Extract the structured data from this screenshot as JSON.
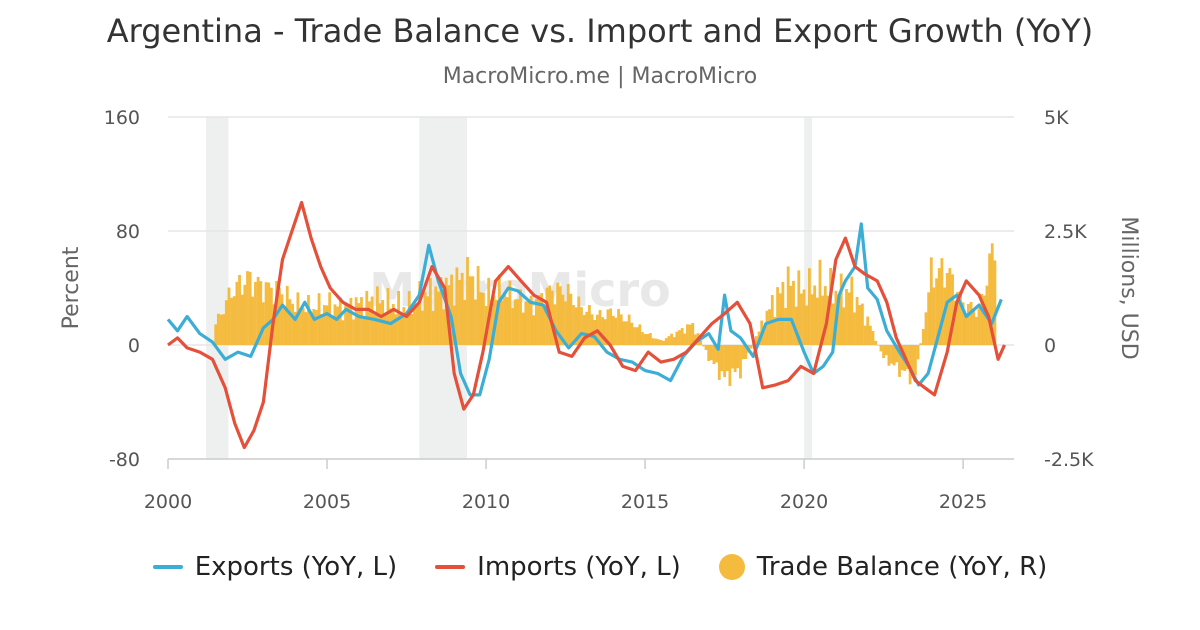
{
  "chart_data": {
    "type": "bar+line",
    "title": "Argentina - Trade Balance vs. Import and Export Growth (YoY)",
    "subtitle": "MacroMicro.me | MacroMicro",
    "watermark": "MacroMicro",
    "left_axis": {
      "title": "Percent",
      "range": [
        -80,
        160
      ],
      "ticks": [
        "160",
        "80",
        "0",
        "-80"
      ],
      "tick_values": [
        160,
        80,
        0,
        -80
      ]
    },
    "right_axis": {
      "title": "Millions, USD",
      "range": [
        -2500,
        5000
      ],
      "ticks": [
        "5K",
        "2.5K",
        "0",
        "-2.5K"
      ],
      "tick_values": [
        5000,
        2500,
        0,
        -2500
      ]
    },
    "x_axis": {
      "range": [
        2000,
        2026.6
      ],
      "ticks": [
        "2000",
        "2005",
        "2010",
        "2015",
        "2020",
        "2025"
      ],
      "tick_values": [
        2000,
        2005,
        2010,
        2015,
        2020,
        2025
      ]
    },
    "grid": true,
    "recession_bands": [
      [
        2001.2,
        2001.9
      ],
      [
        2007.9,
        2009.4
      ],
      [
        2020.0,
        2020.25
      ]
    ],
    "series": [
      {
        "name": "Exports (YoY, L)",
        "axis": "left",
        "color": "#3caed6",
        "type": "line",
        "points": [
          [
            2000.0,
            18
          ],
          [
            2000.3,
            10
          ],
          [
            2000.6,
            20
          ],
          [
            2001.0,
            8
          ],
          [
            2001.4,
            2
          ],
          [
            2001.8,
            -10
          ],
          [
            2002.2,
            -5
          ],
          [
            2002.6,
            -8
          ],
          [
            2003.0,
            12
          ],
          [
            2003.3,
            18
          ],
          [
            2003.6,
            28
          ],
          [
            2004.0,
            18
          ],
          [
            2004.3,
            30
          ],
          [
            2004.6,
            18
          ],
          [
            2005.0,
            22
          ],
          [
            2005.3,
            18
          ],
          [
            2005.6,
            25
          ],
          [
            2006.0,
            20
          ],
          [
            2006.5,
            18
          ],
          [
            2007.0,
            15
          ],
          [
            2007.5,
            22
          ],
          [
            2007.9,
            35
          ],
          [
            2008.2,
            70
          ],
          [
            2008.5,
            45
          ],
          [
            2008.9,
            20
          ],
          [
            2009.2,
            -20
          ],
          [
            2009.5,
            -35
          ],
          [
            2009.8,
            -35
          ],
          [
            2010.1,
            -10
          ],
          [
            2010.4,
            30
          ],
          [
            2010.7,
            40
          ],
          [
            2011.0,
            38
          ],
          [
            2011.4,
            30
          ],
          [
            2011.8,
            28
          ],
          [
            2012.2,
            10
          ],
          [
            2012.6,
            -2
          ],
          [
            2013.0,
            8
          ],
          [
            2013.4,
            6
          ],
          [
            2013.8,
            -5
          ],
          [
            2014.2,
            -10
          ],
          [
            2014.6,
            -12
          ],
          [
            2015.0,
            -18
          ],
          [
            2015.4,
            -20
          ],
          [
            2015.8,
            -25
          ],
          [
            2016.2,
            -8
          ],
          [
            2016.6,
            2
          ],
          [
            2017.0,
            8
          ],
          [
            2017.3,
            -3
          ],
          [
            2017.5,
            35
          ],
          [
            2017.7,
            10
          ],
          [
            2018.0,
            5
          ],
          [
            2018.4,
            -8
          ],
          [
            2018.8,
            15
          ],
          [
            2019.2,
            18
          ],
          [
            2019.6,
            18
          ],
          [
            2020.0,
            -5
          ],
          [
            2020.3,
            -20
          ],
          [
            2020.6,
            -15
          ],
          [
            2020.9,
            -5
          ],
          [
            2021.1,
            35
          ],
          [
            2021.3,
            45
          ],
          [
            2021.6,
            55
          ],
          [
            2021.8,
            85
          ],
          [
            2022.0,
            40
          ],
          [
            2022.3,
            32
          ],
          [
            2022.6,
            10
          ],
          [
            2023.0,
            -5
          ],
          [
            2023.3,
            -15
          ],
          [
            2023.6,
            -28
          ],
          [
            2023.9,
            -20
          ],
          [
            2024.2,
            5
          ],
          [
            2024.5,
            30
          ],
          [
            2024.8,
            35
          ],
          [
            2025.1,
            20
          ],
          [
            2025.5,
            28
          ],
          [
            2025.9,
            15
          ],
          [
            2026.2,
            32
          ]
        ]
      },
      {
        "name": "Imports (YoY, L)",
        "axis": "left",
        "color": "#e4503a",
        "type": "line",
        "points": [
          [
            2000.0,
            0
          ],
          [
            2000.3,
            5
          ],
          [
            2000.6,
            -2
          ],
          [
            2001.0,
            -5
          ],
          [
            2001.4,
            -10
          ],
          [
            2001.8,
            -30
          ],
          [
            2002.1,
            -55
          ],
          [
            2002.4,
            -72
          ],
          [
            2002.7,
            -60
          ],
          [
            2003.0,
            -40
          ],
          [
            2003.3,
            15
          ],
          [
            2003.6,
            60
          ],
          [
            2003.9,
            80
          ],
          [
            2004.2,
            100
          ],
          [
            2004.5,
            75
          ],
          [
            2004.8,
            55
          ],
          [
            2005.1,
            40
          ],
          [
            2005.5,
            30
          ],
          [
            2005.9,
            25
          ],
          [
            2006.3,
            25
          ],
          [
            2006.7,
            20
          ],
          [
            2007.1,
            25
          ],
          [
            2007.5,
            20
          ],
          [
            2007.9,
            30
          ],
          [
            2008.3,
            55
          ],
          [
            2008.7,
            40
          ],
          [
            2009.0,
            -20
          ],
          [
            2009.3,
            -45
          ],
          [
            2009.6,
            -35
          ],
          [
            2009.9,
            -5
          ],
          [
            2010.3,
            45
          ],
          [
            2010.7,
            55
          ],
          [
            2011.1,
            45
          ],
          [
            2011.5,
            35
          ],
          [
            2011.9,
            30
          ],
          [
            2012.3,
            -5
          ],
          [
            2012.7,
            -8
          ],
          [
            2013.1,
            5
          ],
          [
            2013.5,
            10
          ],
          [
            2013.9,
            0
          ],
          [
            2014.3,
            -15
          ],
          [
            2014.7,
            -18
          ],
          [
            2015.1,
            -5
          ],
          [
            2015.5,
            -12
          ],
          [
            2015.9,
            -10
          ],
          [
            2016.3,
            -5
          ],
          [
            2016.7,
            5
          ],
          [
            2017.1,
            15
          ],
          [
            2017.5,
            22
          ],
          [
            2017.9,
            30
          ],
          [
            2018.3,
            15
          ],
          [
            2018.7,
            -30
          ],
          [
            2019.1,
            -28
          ],
          [
            2019.5,
            -25
          ],
          [
            2019.9,
            -15
          ],
          [
            2020.3,
            -20
          ],
          [
            2020.7,
            15
          ],
          [
            2021.0,
            60
          ],
          [
            2021.3,
            75
          ],
          [
            2021.6,
            55
          ],
          [
            2021.9,
            50
          ],
          [
            2022.3,
            45
          ],
          [
            2022.6,
            30
          ],
          [
            2022.9,
            5
          ],
          [
            2023.2,
            -10
          ],
          [
            2023.5,
            -25
          ],
          [
            2023.8,
            -30
          ],
          [
            2024.1,
            -35
          ],
          [
            2024.5,
            -5
          ],
          [
            2024.8,
            30
          ],
          [
            2025.1,
            45
          ],
          [
            2025.5,
            35
          ],
          [
            2025.8,
            20
          ],
          [
            2026.1,
            -10
          ],
          [
            2026.3,
            0
          ]
        ]
      },
      {
        "name": "Trade Balance (YoY, R)",
        "axis": "right",
        "color": "#f4bb3f",
        "type": "bar",
        "points": [
          [
            2001.5,
            500
          ],
          [
            2002.0,
            1300
          ],
          [
            2002.5,
            1600
          ],
          [
            2003.0,
            1400
          ],
          [
            2003.5,
            1300
          ],
          [
            2004.0,
            1000
          ],
          [
            2004.5,
            900
          ],
          [
            2005.0,
            1000
          ],
          [
            2005.5,
            900
          ],
          [
            2006.0,
            1000
          ],
          [
            2006.5,
            1100
          ],
          [
            2007.0,
            1000
          ],
          [
            2007.5,
            900
          ],
          [
            2008.0,
            1200
          ],
          [
            2008.5,
            1300
          ],
          [
            2009.0,
            1500
          ],
          [
            2009.5,
            1700
          ],
          [
            2010.0,
            1200
          ],
          [
            2010.5,
            1300
          ],
          [
            2011.0,
            1100
          ],
          [
            2011.5,
            1000
          ],
          [
            2012.0,
            1300
          ],
          [
            2012.5,
            1300
          ],
          [
            2013.0,
            900
          ],
          [
            2013.5,
            700
          ],
          [
            2014.0,
            800
          ],
          [
            2014.5,
            600
          ],
          [
            2015.0,
            300
          ],
          [
            2015.5,
            100
          ],
          [
            2016.0,
            300
          ],
          [
            2016.5,
            500
          ],
          [
            2017.0,
            -300
          ],
          [
            2017.5,
            -800
          ],
          [
            2018.0,
            -600
          ],
          [
            2018.5,
            200
          ],
          [
            2019.0,
            1000
          ],
          [
            2019.5,
            1500
          ],
          [
            2020.0,
            1300
          ],
          [
            2020.5,
            1500
          ],
          [
            2021.0,
            1300
          ],
          [
            2021.5,
            1300
          ],
          [
            2022.0,
            600
          ],
          [
            2022.5,
            -300
          ],
          [
            2023.0,
            -600
          ],
          [
            2023.5,
            -800
          ],
          [
            2024.0,
            1700
          ],
          [
            2024.5,
            1800
          ],
          [
            2025.0,
            1000
          ],
          [
            2025.5,
            800
          ],
          [
            2026.0,
            2500
          ]
        ]
      }
    ],
    "legend_position": "bottom"
  },
  "legend": [
    {
      "label": "Exports (YoY, L)",
      "color": "#3caed6",
      "shape": "line"
    },
    {
      "label": "Imports (YoY, L)",
      "color": "#e4503a",
      "shape": "line"
    },
    {
      "label": "Trade Balance (YoY, R)",
      "color": "#f4bb3f",
      "shape": "dot"
    }
  ]
}
